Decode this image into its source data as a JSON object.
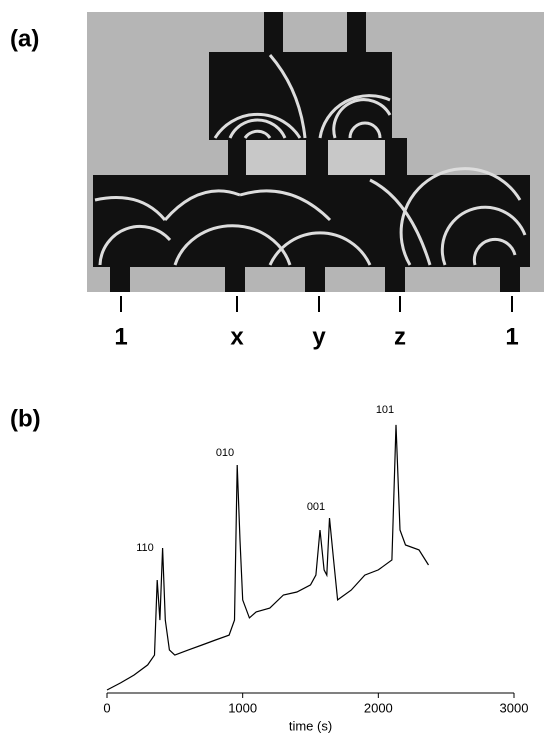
{
  "panel_a": {
    "label": "(a)",
    "inputs": [
      "1",
      "x",
      "y",
      "z",
      "1"
    ]
  },
  "panel_b": {
    "label": "(b)"
  },
  "chart_data": {
    "type": "line",
    "xlabel": "time (s)",
    "x": [
      0,
      100,
      200,
      300,
      350,
      370,
      390,
      410,
      430,
      460,
      500,
      600,
      700,
      800,
      900,
      940,
      960,
      980,
      1000,
      1050,
      1100,
      1200,
      1300,
      1400,
      1500,
      1540,
      1570,
      1600,
      1620,
      1640,
      1670,
      1700,
      1800,
      1900,
      2000,
      2100,
      2130,
      2160,
      2200,
      2300,
      2370
    ],
    "values": [
      1.1,
      3.7,
      6.6,
      10.3,
      13.9,
      41.4,
      26.7,
      53.1,
      26.7,
      15.8,
      13.9,
      15.8,
      17.6,
      19.4,
      21.2,
      26.7,
      83.5,
      56.0,
      34.1,
      27.5,
      29.7,
      31.1,
      35.9,
      37.0,
      39.6,
      43.2,
      59.7,
      45.1,
      43.2,
      64.1,
      48.7,
      34.1,
      37.7,
      43.2,
      45.1,
      48.7,
      98.2,
      59.7,
      54.2,
      52.4,
      46.9
    ],
    "color": "#000000",
    "xlim": [
      0,
      3000
    ],
    "xticks": [
      0,
      1000,
      2000,
      3000
    ],
    "ylim": [
      0,
      100
    ],
    "annotations": [
      "110",
      "010",
      "001",
      "101"
    ]
  }
}
